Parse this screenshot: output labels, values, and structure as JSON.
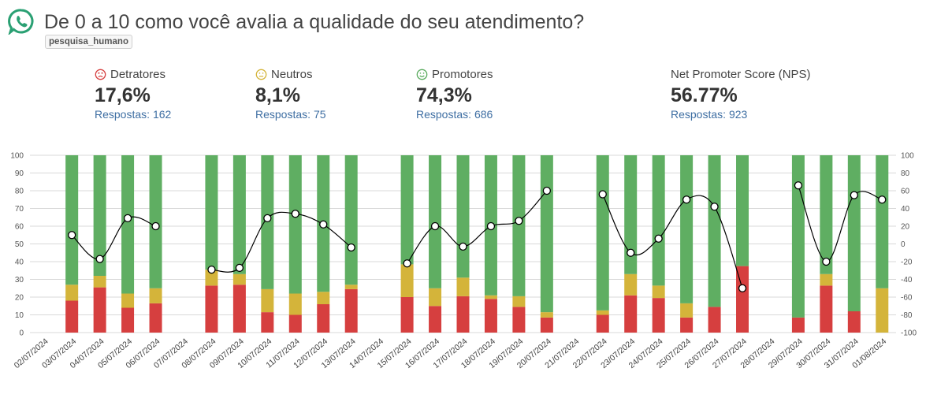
{
  "header": {
    "title": "De 0 a 10 como você avalia a qualidade do seu atendimento?",
    "tag": "pesquisa_humano",
    "icon": "whatsapp-icon"
  },
  "stats": [
    {
      "label": "Detratores",
      "value": "17,6%",
      "responses_label": "Respostas:",
      "responses": "162",
      "icon": "sad-face-icon",
      "color": "#d63f3f"
    },
    {
      "label": "Neutros",
      "value": "8,1%",
      "responses_label": "Respostas:",
      "responses": "75",
      "icon": "neutral-face-icon",
      "color": "#d4b43a"
    },
    {
      "label": "Promotores",
      "value": "74,3%",
      "responses_label": "Respostas:",
      "responses": "686",
      "icon": "happy-face-icon",
      "color": "#5aab5e"
    },
    {
      "label": "Net Promoter Score (NPS)",
      "value": "56.77%",
      "responses_label": "Respostas:",
      "responses": "923"
    }
  ],
  "colors": {
    "detractor": "#d63f3f",
    "neutral": "#d4b43a",
    "promoter": "#5fae62",
    "line": "#000000",
    "grid": "#d9d9d9"
  },
  "chart_data": {
    "type": "bar",
    "stacked": true,
    "categories": [
      "02/07/2024",
      "03/07/2024",
      "04/07/2024",
      "05/07/2024",
      "06/07/2024",
      "07/07/2024",
      "08/07/2024",
      "09/07/2024",
      "10/07/2024",
      "11/07/2024",
      "12/07/2024",
      "13/07/2024",
      "14/07/2024",
      "15/07/2024",
      "16/07/2024",
      "17/07/2024",
      "18/07/2024",
      "19/07/2024",
      "20/07/2024",
      "21/07/2024",
      "22/07/2024",
      "23/07/2024",
      "24/07/2024",
      "25/07/2024",
      "26/07/2024",
      "27/07/2024",
      "28/07/2024",
      "29/07/2024",
      "30/07/2024",
      "31/07/2024",
      "01/08/2024"
    ],
    "series": [
      {
        "name": "Detratores",
        "color": "#d63f3f",
        "values": [
          null,
          18,
          25.5,
          14,
          16.5,
          null,
          26.5,
          27,
          11.5,
          10,
          16,
          24.5,
          null,
          20,
          15,
          20.5,
          19,
          14.5,
          8.5,
          null,
          10,
          21,
          19.5,
          8.5,
          14.5,
          37.5,
          null,
          8.5,
          26.5,
          12,
          0
        ]
      },
      {
        "name": "Neutros",
        "color": "#d4b43a",
        "values": [
          null,
          9,
          6.5,
          8,
          8.5,
          null,
          9,
          6,
          13,
          12,
          7,
          2.5,
          null,
          18.5,
          10,
          10.5,
          2,
          6,
          3,
          null,
          2.5,
          12,
          7,
          8,
          0,
          0,
          null,
          0,
          6.5,
          0,
          25
        ]
      },
      {
        "name": "Promotores",
        "color": "#5fae62",
        "values": [
          null,
          73,
          68,
          78,
          75,
          null,
          64.5,
          67,
          75.5,
          78,
          77,
          73,
          null,
          61.5,
          75,
          69,
          79,
          79.5,
          88.5,
          null,
          87.5,
          67,
          73.5,
          83.5,
          85.5,
          62.5,
          null,
          91.5,
          67,
          88,
          75
        ]
      },
      {
        "name": "NPS",
        "type": "line",
        "axis": "right",
        "values": [
          null,
          10,
          -17,
          29,
          20,
          null,
          -29,
          -27,
          29,
          34,
          22,
          -4,
          null,
          -22,
          20,
          -3,
          20,
          26,
          60,
          null,
          56,
          -10,
          6,
          50,
          42,
          -50,
          null,
          66,
          -20,
          55,
          50
        ]
      }
    ],
    "ylim": [
      0,
      100
    ],
    "yticks": [
      0,
      10,
      20,
      30,
      40,
      50,
      60,
      70,
      80,
      90,
      100
    ],
    "y2lim": [
      -100,
      100
    ],
    "y2ticks": [
      -100,
      -80,
      -60,
      -40,
      -20,
      0,
      20,
      40,
      60,
      80,
      100
    ],
    "xlabel": "",
    "ylabel": "",
    "grid": true
  }
}
